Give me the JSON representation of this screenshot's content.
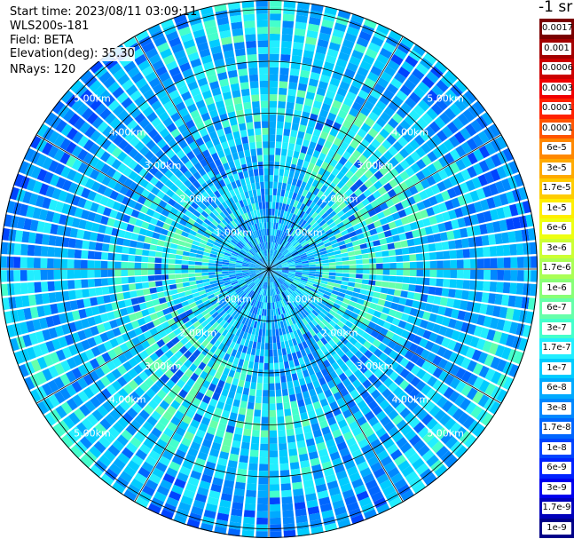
{
  "header": {
    "start_time": "Start time: 2023/08/11 03:09:11",
    "device": "WLS200s-181",
    "field": "Field: BETA",
    "elevation": "Elevation(deg): 35.30",
    "nrays": "NRays: 120"
  },
  "colorbar": {
    "title": "-1 sr",
    "labels": [
      "0.0017",
      "0.001",
      "0.0006",
      "0.0003",
      "0.00017",
      "0.0001",
      "6e-5",
      "3e-5",
      "1.7e-5",
      "1e-5",
      "6e-6",
      "3e-6",
      "1.7e-6",
      "1e-6",
      "6e-7",
      "3e-7",
      "1.7e-7",
      "1e-7",
      "6e-8",
      "3e-8",
      "1.7e-8",
      "1e-8",
      "6e-9",
      "3e-9",
      "1.7e-9",
      "1e-9"
    ],
    "colors": [
      "#7a0000",
      "#a30000",
      "#cc0000",
      "#f00000",
      "#ff2200",
      "#ff5500",
      "#ff8800",
      "#ffaa00",
      "#ffcc00",
      "#ffee00",
      "#eeff11",
      "#ccff33",
      "#aaff55",
      "#88ff77",
      "#66ffaa",
      "#44ffcc",
      "#22eeff",
      "#00ccff",
      "#00aaff",
      "#0088ff",
      "#0066ff",
      "#0044ff",
      "#0022ff",
      "#0000ee",
      "#0000bb",
      "#000088"
    ]
  },
  "plot": {
    "range_labels": [
      "1.00km",
      "2.00km",
      "3.00km",
      "4.00km",
      "5.00km"
    ],
    "nrays": 120
  }
}
